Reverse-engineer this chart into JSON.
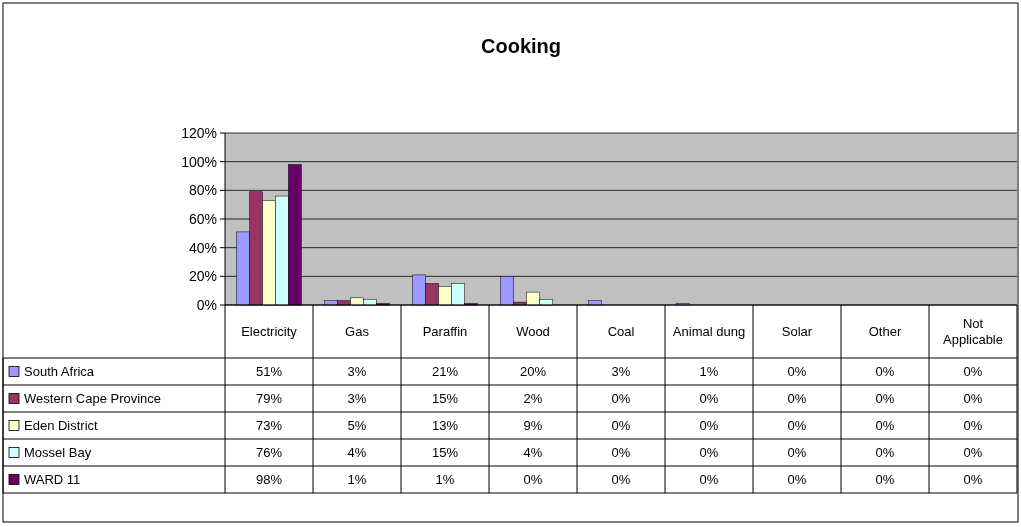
{
  "chart_data": {
    "type": "bar",
    "title": "Cooking",
    "categories": [
      "Electricity",
      "Gas",
      "Paraffin",
      "Wood",
      "Coal",
      "Animal dung",
      "Solar",
      "Other",
      "Not Applicable"
    ],
    "series": [
      {
        "name": "South Africa",
        "color": "#9999ff",
        "values": [
          51,
          3,
          21,
          20,
          3,
          1,
          0,
          0,
          0
        ],
        "value_labels": [
          "51%",
          "3%",
          "21%",
          "20%",
          "3%",
          "1%",
          "0%",
          "0%",
          "0%"
        ]
      },
      {
        "name": "Western Cape Province",
        "color": "#993366",
        "values": [
          79,
          3,
          15,
          2,
          0,
          0,
          0,
          0,
          0
        ],
        "value_labels": [
          "79%",
          "3%",
          "15%",
          "2%",
          "0%",
          "0%",
          "0%",
          "0%",
          "0%"
        ]
      },
      {
        "name": "Eden District",
        "color": "#ffffcc",
        "values": [
          73,
          5,
          13,
          9,
          0,
          0,
          0,
          0,
          0
        ],
        "value_labels": [
          "73%",
          "5%",
          "13%",
          "9%",
          "0%",
          "0%",
          "0%",
          "0%",
          "0%"
        ]
      },
      {
        "name": "Mossel Bay",
        "color": "#ccffff",
        "values": [
          76,
          4,
          15,
          4,
          0,
          0,
          0,
          0,
          0
        ],
        "value_labels": [
          "76%",
          "4%",
          "15%",
          "4%",
          "0%",
          "0%",
          "0%",
          "0%",
          "0%"
        ]
      },
      {
        "name": "WARD 11",
        "color": "#660066",
        "values": [
          98,
          1,
          1,
          0,
          0,
          0,
          0,
          0,
          0
        ],
        "value_labels": [
          "98%",
          "1%",
          "1%",
          "0%",
          "0%",
          "0%",
          "0%",
          "0%",
          "0%"
        ]
      }
    ],
    "ylim": [
      0,
      120
    ],
    "yticks": [
      {
        "value": 0,
        "label": "0%"
      },
      {
        "value": 20,
        "label": "20%"
      },
      {
        "value": 40,
        "label": "40%"
      },
      {
        "value": 60,
        "label": "60%"
      },
      {
        "value": 80,
        "label": "80%"
      },
      {
        "value": 100,
        "label": "100%"
      },
      {
        "value": 120,
        "label": "120%"
      }
    ],
    "grid": "y",
    "legend": "bottom"
  }
}
